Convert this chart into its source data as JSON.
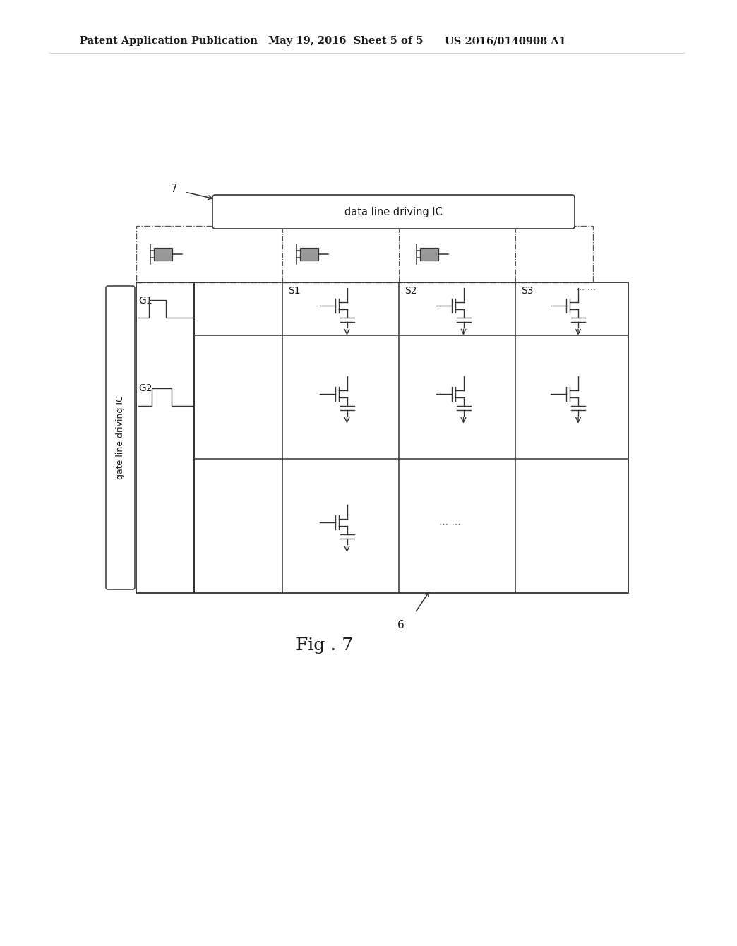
{
  "bg_color": "#ffffff",
  "header_left": "Patent Application Publication",
  "header_mid": "May 19, 2016  Sheet 5 of 5",
  "header_right": "US 2016/0140908 A1",
  "fig_label": "Fig . 7",
  "label_7": "7",
  "label_6": "6",
  "data_line_ic_label": "data line driving IC",
  "gate_line_ic_label": "gate line driving IC",
  "g1_label": "G1",
  "g2_label": "G2",
  "s1_label": "S1",
  "s2_label": "S2",
  "s3_label": "S3",
  "dots": "... ...",
  "line_color": "#333333",
  "dashed_color": "#555555",
  "gray_fill": "#999999",
  "header_fontsize": 10.5,
  "fig_fontsize": 18,
  "label_fontsize": 10,
  "ic_fontsize": 10.5,
  "gate_ic_fontsize": 9
}
